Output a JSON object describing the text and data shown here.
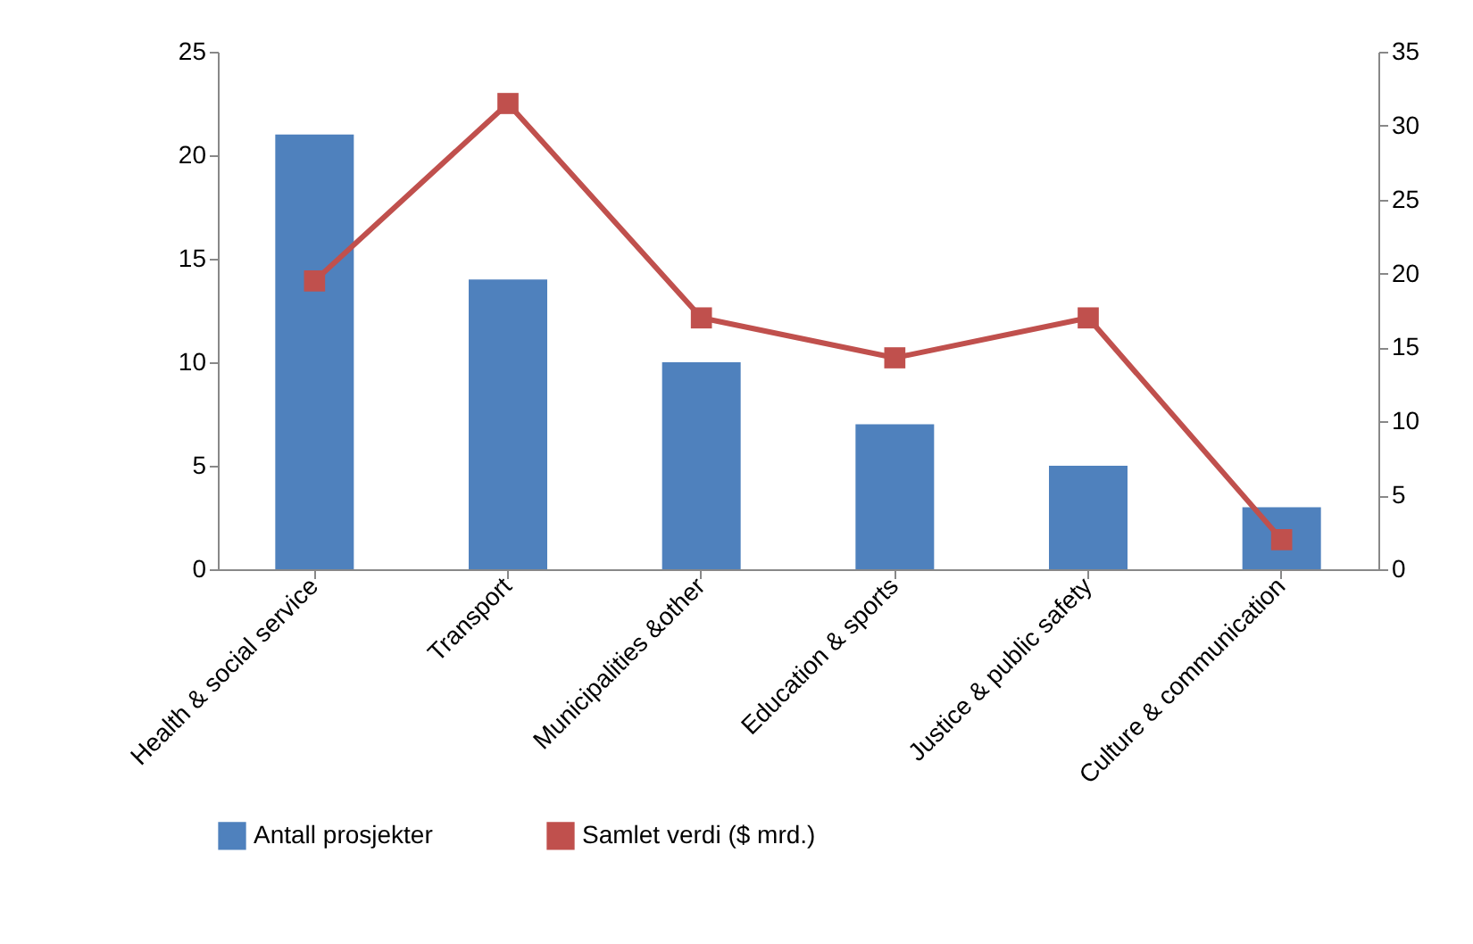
{
  "chart_data": {
    "type": "bar",
    "categories": [
      "Health & social service",
      "Transport",
      "Municipalities &other",
      "Education & sports",
      "Justice & public safety",
      "Culture & communication"
    ],
    "series": [
      {
        "name": "Antall prosjekter",
        "color": "#4f81bd",
        "values": [
          21,
          14,
          10,
          7,
          5,
          3
        ]
      },
      {
        "name": "Samlet verdi ($ mrd.)",
        "type": "line",
        "axis": "y2",
        "color": "#c0504d",
        "marker": "square",
        "line_style": "solid",
        "values": [
          19.5,
          31.5,
          17,
          14.3,
          17,
          2
        ]
      }
    ],
    "ylim": [
      0,
      25
    ],
    "yticks": [
      0,
      5,
      10,
      15,
      20,
      25
    ],
    "y2lim": [
      0,
      35
    ],
    "y2ticks": [
      0,
      5,
      10,
      15,
      20,
      25,
      30,
      35
    ],
    "legend": "bottom"
  }
}
